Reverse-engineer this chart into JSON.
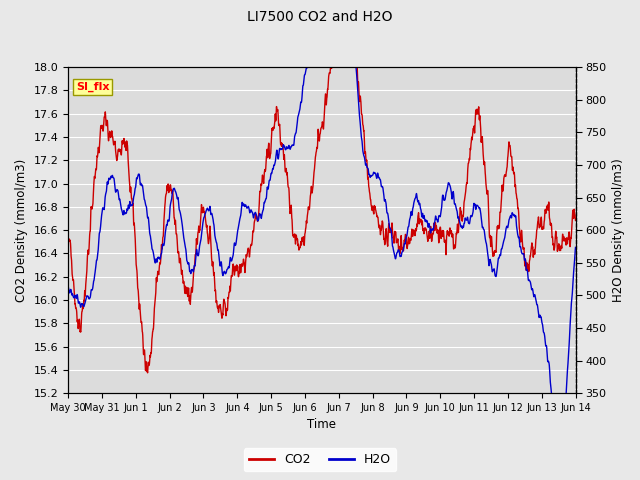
{
  "title": "LI7500 CO2 and H2O",
  "xlabel": "Time",
  "ylabel_left": "CO2 Density (mmol/m3)",
  "ylabel_right": "H2O Density (mmol/m3)",
  "legend_label_co2": "CO2",
  "legend_label_h2o": "H2O",
  "annotation_text": "SI_flx",
  "co2_color": "#cc0000",
  "h2o_color": "#0000cc",
  "co2_ylim": [
    15.2,
    18.0
  ],
  "h2o_ylim": [
    350,
    850
  ],
  "bg_color": "#e8e8e8",
  "plot_bg_color": "#dcdcdc",
  "grid_color": "#ffffff",
  "annotation_bg": "#ffff99",
  "annotation_edge": "#999900",
  "x_tick_labels": [
    "May 30",
    "May 31",
    "Jun 1",
    "Jun 2",
    "Jun 3",
    "Jun 4",
    "Jun 5",
    "Jun 6",
    "Jun 7",
    "Jun 8",
    "Jun 9",
    "Jun 10",
    "Jun 11",
    "Jun 12",
    "Jun 13",
    "Jun 14"
  ],
  "x_tick_positions": [
    0,
    288,
    576,
    864,
    1152,
    1440,
    1728,
    2016,
    2304,
    2592,
    2880,
    3168,
    3456,
    3744,
    4032,
    4320
  ],
  "co2_yticks": [
    15.2,
    15.4,
    15.6,
    15.8,
    16.0,
    16.2,
    16.4,
    16.6,
    16.8,
    17.0,
    17.2,
    17.4,
    17.6,
    17.8,
    18.0
  ],
  "h2o_yticks": [
    350,
    400,
    450,
    500,
    550,
    600,
    650,
    700,
    750,
    800,
    850
  ],
  "line_width": 1.0
}
